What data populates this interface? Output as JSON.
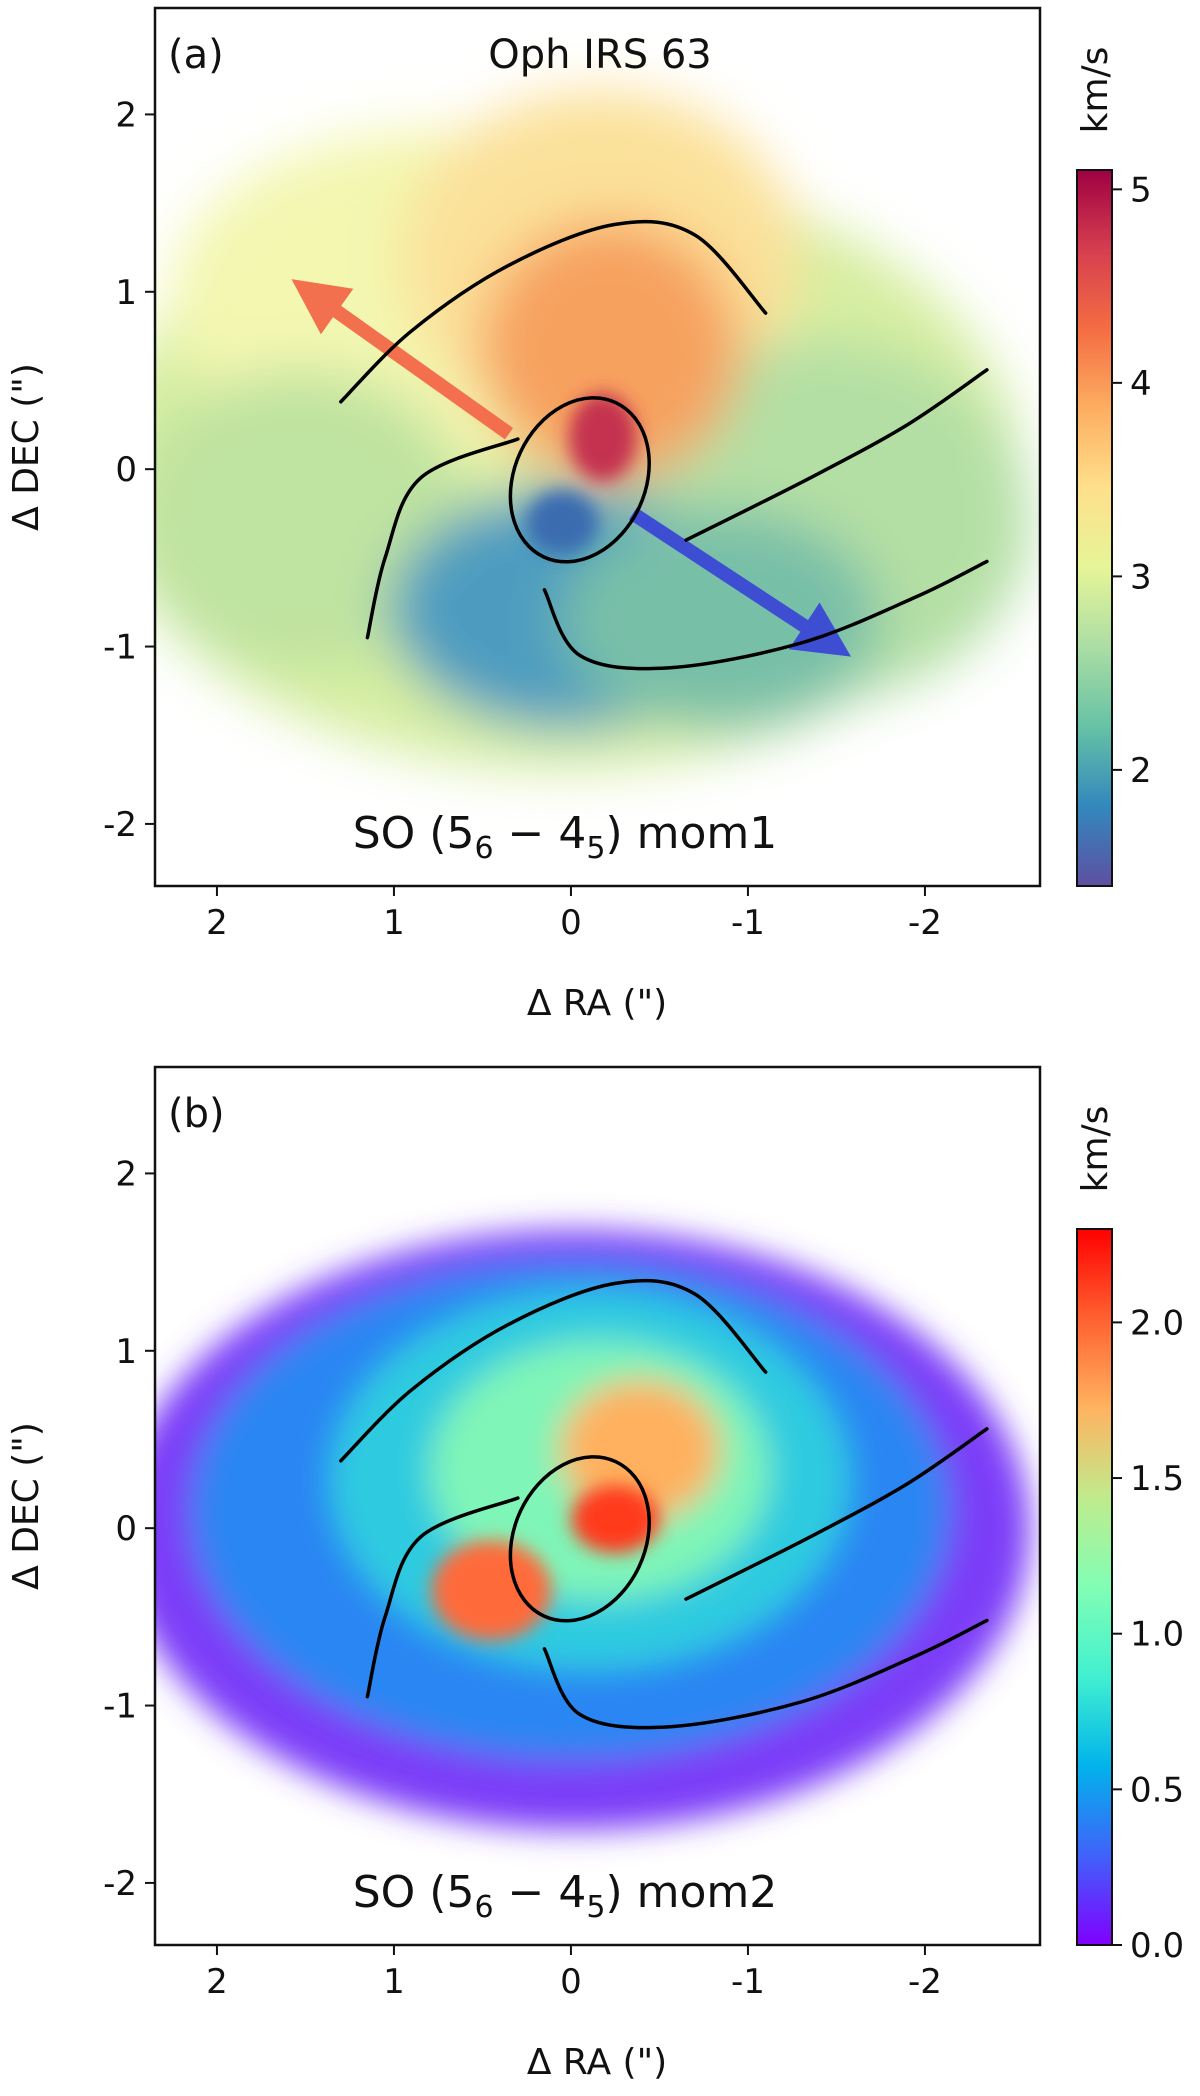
{
  "chart_data": [
    {
      "type": "heatmap",
      "panel_label": "(a)",
      "title": "Oph IRS 63",
      "annotation": {
        "molecule": "SO (",
        "level_upper": "5",
        "sub_upper": "6",
        "minus": " − ",
        "level_lower": "4",
        "sub_lower": "5",
        "moment": ")  mom1"
      },
      "xlabel": "Δ RA (\")",
      "ylabel": "Δ DEC (\")",
      "xlim": [
        2.35,
        -2.65
      ],
      "ylim": [
        -2.35,
        2.6
      ],
      "xticks": [
        {
          "v": 2,
          "label": "2"
        },
        {
          "v": 1,
          "label": "1"
        },
        {
          "v": 0,
          "label": "0"
        },
        {
          "v": -1,
          "label": "-1"
        },
        {
          "v": -2,
          "label": "-2"
        }
      ],
      "yticks": [
        {
          "v": 2,
          "label": "2"
        },
        {
          "v": 1,
          "label": "1"
        },
        {
          "v": 0,
          "label": "0"
        },
        {
          "v": -1,
          "label": "-1"
        },
        {
          "v": -2,
          "label": "-2"
        }
      ],
      "colorbar": {
        "label": "km/s",
        "colormap": "Spectral_r",
        "range": [
          1.4,
          5.1
        ],
        "ticks": [
          {
            "v": 2,
            "label": "2"
          },
          {
            "v": 3,
            "label": "3"
          },
          {
            "v": 4,
            "label": "4"
          },
          {
            "v": 5,
            "label": "5"
          }
        ],
        "stops": [
          "#5e4fa2",
          "#3288bd",
          "#66c2a5",
          "#abdda4",
          "#e6f598",
          "#fee08b",
          "#fdae61",
          "#f46d43",
          "#d53e4f",
          "#9e0142"
        ]
      },
      "features": [
        {
          "name": "redshifted-core",
          "x": -0.18,
          "y": 0.18,
          "value": 4.6
        },
        {
          "name": "blueshifted-core",
          "x": 0.05,
          "y": -0.3,
          "value": 1.8
        }
      ],
      "arrows": [
        {
          "name": "redshifted-outflow-arrow",
          "color": "#f4694a",
          "from": [
            0.35,
            0.2
          ],
          "to": [
            1.45,
            0.98
          ]
        },
        {
          "name": "blueshifted-outflow-arrow",
          "color": "#3a48d6",
          "from": [
            -0.35,
            -0.25
          ],
          "to": [
            -1.45,
            -0.97
          ]
        }
      ]
    },
    {
      "type": "heatmap",
      "panel_label": "(b)",
      "title": "",
      "annotation": {
        "molecule": "SO (",
        "level_upper": "5",
        "sub_upper": "6",
        "minus": " − ",
        "level_lower": "4",
        "sub_lower": "5",
        "moment": ")  mom2"
      },
      "xlabel": "Δ RA (\")",
      "ylabel": "Δ DEC (\")",
      "xlim": [
        2.35,
        -2.65
      ],
      "ylim": [
        -2.35,
        2.6
      ],
      "xticks": [
        {
          "v": 2,
          "label": "2"
        },
        {
          "v": 1,
          "label": "1"
        },
        {
          "v": 0,
          "label": "0"
        },
        {
          "v": -1,
          "label": "-1"
        },
        {
          "v": -2,
          "label": "-2"
        }
      ],
      "yticks": [
        {
          "v": 2,
          "label": "2"
        },
        {
          "v": 1,
          "label": "1"
        },
        {
          "v": 0,
          "label": "0"
        },
        {
          "v": -1,
          "label": "-1"
        },
        {
          "v": -2,
          "label": "-2"
        }
      ],
      "colorbar": {
        "label": "km/s",
        "colormap": "rainbow",
        "range": [
          0.0,
          2.3
        ],
        "ticks": [
          {
            "v": 0.0,
            "label": "0.0"
          },
          {
            "v": 0.5,
            "label": "0.5"
          },
          {
            "v": 1.0,
            "label": "1.0"
          },
          {
            "v": 1.5,
            "label": "1.5"
          },
          {
            "v": 2.0,
            "label": "2.0"
          }
        ],
        "stops": [
          "#8000ff",
          "#4062fa",
          "#01b3eb",
          "#41f0d0",
          "#81feb4",
          "#c0eb8d",
          "#ffb360",
          "#ff6130",
          "#ff0000"
        ]
      },
      "features": [
        {
          "name": "high-dispersion-core",
          "x": -0.25,
          "y": 0.05,
          "value": 2.1
        },
        {
          "name": "high-dispersion-southeast",
          "x": 0.45,
          "y": -0.35,
          "value": 1.8
        }
      ],
      "arrows": []
    }
  ],
  "overlay_curves": [
    {
      "name": "north-arc",
      "points": [
        [
          1.3,
          0.38
        ],
        [
          0.9,
          0.78
        ],
        [
          0.35,
          1.15
        ],
        [
          -0.25,
          1.38
        ],
        [
          -0.7,
          1.32
        ],
        [
          -1.1,
          0.88
        ]
      ]
    },
    {
      "name": "east-arc",
      "points": [
        [
          0.3,
          0.17
        ],
        [
          0.85,
          -0.05
        ],
        [
          1.05,
          -0.5
        ],
        [
          1.15,
          -0.95
        ]
      ]
    },
    {
      "name": "west-arc",
      "points": [
        [
          -0.65,
          -0.4
        ],
        [
          -1.35,
          -0.05
        ],
        [
          -1.9,
          0.25
        ],
        [
          -2.35,
          0.56
        ]
      ]
    },
    {
      "name": "south-arc",
      "points": [
        [
          0.15,
          -0.68
        ],
        [
          -0.05,
          -1.05
        ],
        [
          -0.55,
          -1.12
        ],
        [
          -1.3,
          -0.98
        ],
        [
          -1.95,
          -0.72
        ],
        [
          -2.35,
          -0.52
        ]
      ]
    }
  ],
  "overlay_ellipse": {
    "name": "central-ellipse",
    "cx": -0.05,
    "cy": -0.06,
    "rx": 0.37,
    "ry": 0.48,
    "rotation_deg": 25
  }
}
